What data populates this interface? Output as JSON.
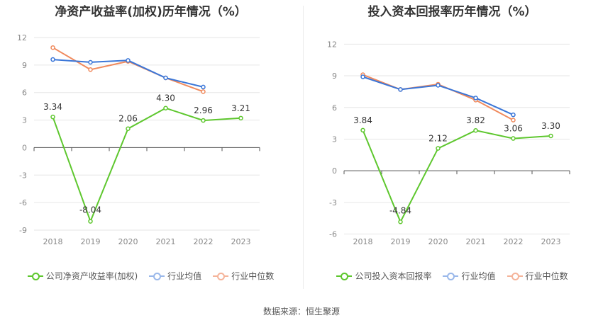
{
  "colors": {
    "company": "#5ec72e",
    "industry_avg": "#3a76d8",
    "industry_median": "#f08a5d"
  },
  "source_text": "数据来源：恒生聚源",
  "chart_data": [
    {
      "type": "line",
      "title": "净资产收益率(加权)历年情况（%）",
      "categories": [
        "2018",
        "2019",
        "2020",
        "2021",
        "2022",
        "2023"
      ],
      "yticks": [
        12,
        9,
        6,
        3,
        0,
        -3,
        -6,
        -9
      ],
      "ylim": [
        -10,
        13
      ],
      "series": [
        {
          "name": "公司净资产收益率(加权)",
          "key": "company",
          "values": [
            3.34,
            -8.04,
            2.06,
            4.3,
            2.96,
            3.21
          ],
          "labels": [
            "3.34",
            "-8.04",
            "2.06",
            "4.30",
            "2.96",
            "3.21"
          ]
        },
        {
          "name": "行业均值",
          "key": "industry_avg",
          "values": [
            9.6,
            9.3,
            9.5,
            7.6,
            6.6,
            null
          ]
        },
        {
          "name": "行业中位数",
          "key": "industry_median",
          "values": [
            10.9,
            8.5,
            9.4,
            7.6,
            6.1,
            null
          ]
        }
      ]
    },
    {
      "type": "line",
      "title": "投入资本回报率历年情况（%）",
      "categories": [
        "2018",
        "2019",
        "2020",
        "2021",
        "2022",
        "2023"
      ],
      "yticks": [
        12,
        9,
        6,
        3,
        0,
        -3,
        -6
      ],
      "ylim": [
        -6.5,
        13.5
      ],
      "series": [
        {
          "name": "公司投入资本回报率",
          "key": "company",
          "values": [
            3.84,
            -4.84,
            2.12,
            3.82,
            3.06,
            3.3
          ],
          "labels": [
            "3.84",
            "-4.84",
            "2.12",
            "3.82",
            "3.06",
            "3.30"
          ]
        },
        {
          "name": "行业均值",
          "key": "industry_avg",
          "values": [
            8.9,
            7.7,
            8.1,
            6.9,
            5.3,
            null
          ]
        },
        {
          "name": "行业中位数",
          "key": "industry_median",
          "values": [
            9.1,
            7.7,
            8.2,
            6.7,
            4.8,
            null
          ]
        }
      ]
    }
  ]
}
